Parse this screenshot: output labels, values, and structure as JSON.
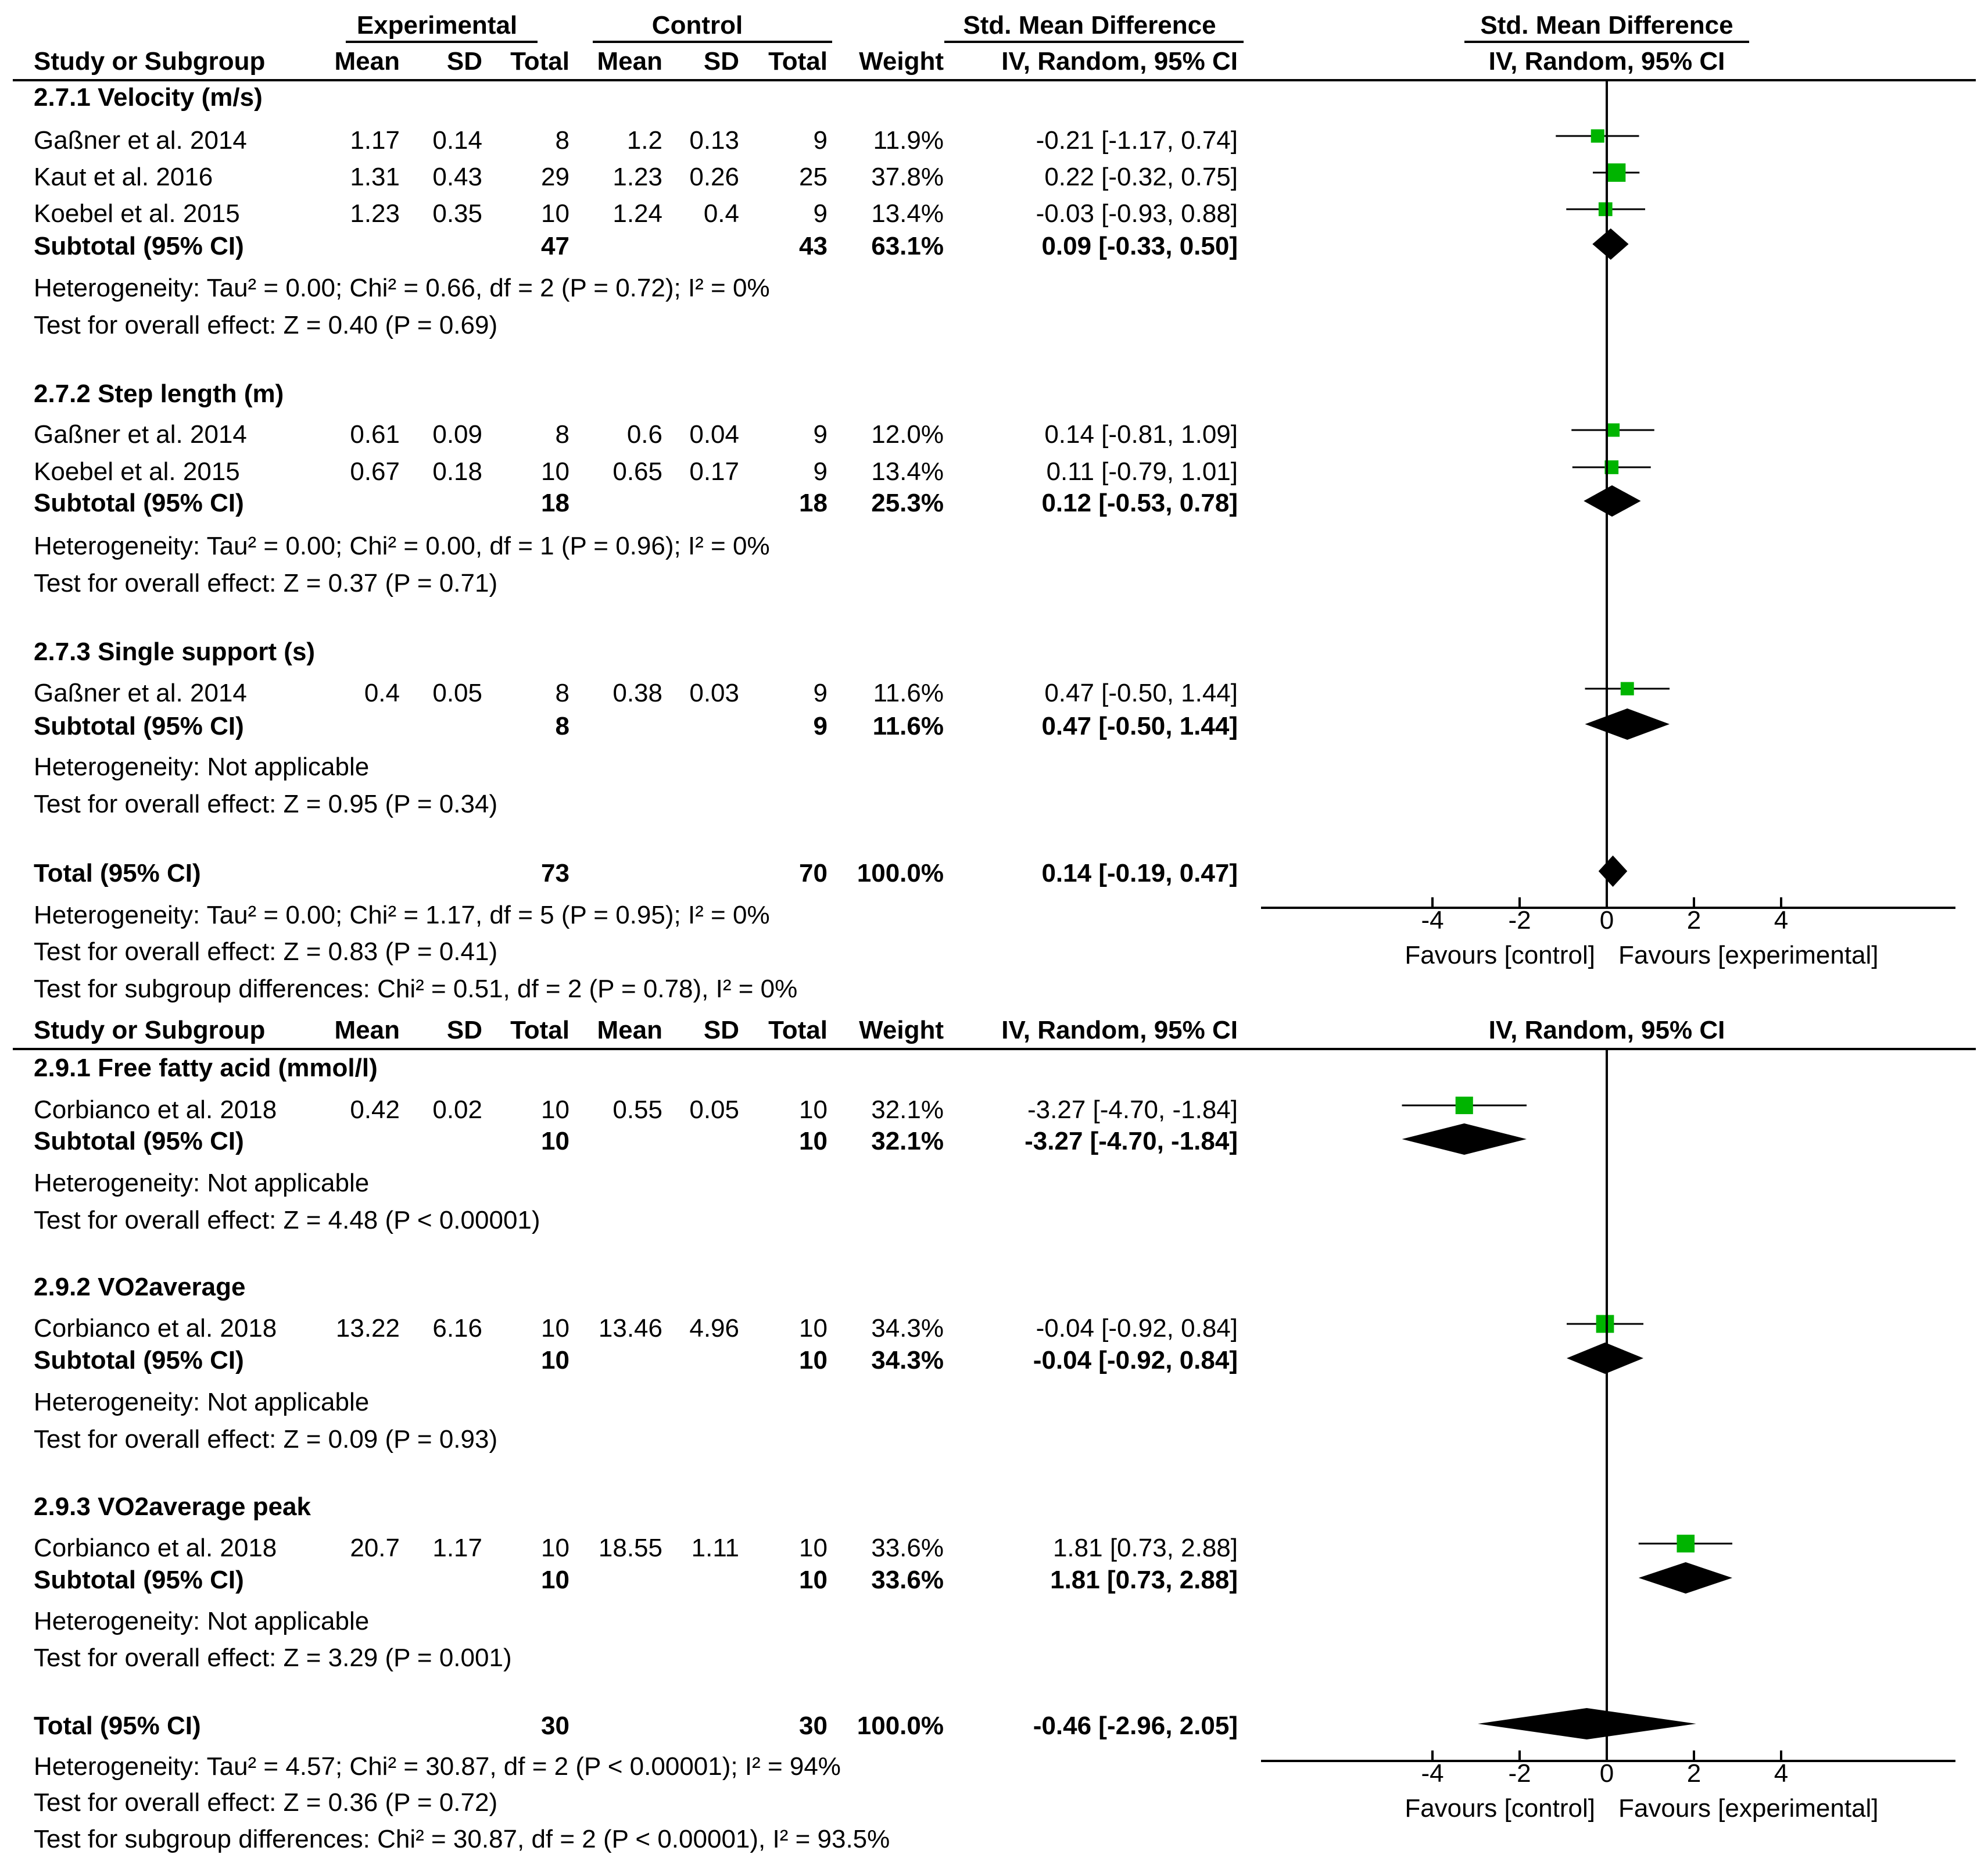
{
  "chart_data": [
    {
      "type": "forest",
      "header": {
        "group_experimental": "Experimental",
        "group_control": "Control",
        "effect_title": "Std. Mean Difference",
        "plot_title": "Std. Mean Difference",
        "cols": [
          "Study or Subgroup",
          "Mean",
          "SD",
          "Total",
          "Mean",
          "SD",
          "Total",
          "Weight",
          "IV, Random, 95% CI"
        ],
        "plot_method": "IV, Random, 95% CI"
      },
      "xlim": [
        -4,
        4
      ],
      "axis_ticks": [
        "-4",
        "-2",
        "0",
        "2",
        "4"
      ],
      "favours_left": "Favours [control]",
      "favours_right": "Favours [experimental]",
      "subgroups": [
        {
          "title": "2.7.1 Velocity (m/s)",
          "studies": [
            {
              "name": "Gaßner et al. 2014",
              "e_mean": "1.17",
              "e_sd": "0.14",
              "e_total": "8",
              "c_mean": "1.2",
              "c_sd": "0.13",
              "c_total": "9",
              "weight": "11.9%",
              "ci_text": "-0.21 [-1.17, 0.74]",
              "est": -0.21,
              "lo": -1.17,
              "hi": 0.74,
              "w": 11.9
            },
            {
              "name": "Kaut et al. 2016",
              "e_mean": "1.31",
              "e_sd": "0.43",
              "e_total": "29",
              "c_mean": "1.23",
              "c_sd": "0.26",
              "c_total": "25",
              "weight": "37.8%",
              "ci_text": "0.22 [-0.32, 0.75]",
              "est": 0.22,
              "lo": -0.32,
              "hi": 0.75,
              "w": 37.8
            },
            {
              "name": "Koebel et al. 2015",
              "e_mean": "1.23",
              "e_sd": "0.35",
              "e_total": "10",
              "c_mean": "1.24",
              "c_sd": "0.4",
              "c_total": "9",
              "weight": "13.4%",
              "ci_text": "-0.03 [-0.93, 0.88]",
              "est": -0.03,
              "lo": -0.93,
              "hi": 0.88,
              "w": 13.4
            }
          ],
          "subtotal": {
            "label": "Subtotal (95% CI)",
            "e_total": "47",
            "c_total": "43",
            "weight": "63.1%",
            "ci_text": "0.09 [-0.33, 0.50]",
            "est": 0.09,
            "lo": -0.33,
            "hi": 0.5
          },
          "heterogeneity": "Heterogeneity: Tau² = 0.00; Chi² = 0.66, df = 2 (P = 0.72); I² = 0%",
          "overall": "Test for overall effect: Z = 0.40 (P = 0.69)"
        },
        {
          "title": "2.7.2 Step length (m)",
          "studies": [
            {
              "name": "Gaßner et al. 2014",
              "e_mean": "0.61",
              "e_sd": "0.09",
              "e_total": "8",
              "c_mean": "0.6",
              "c_sd": "0.04",
              "c_total": "9",
              "weight": "12.0%",
              "ci_text": "0.14 [-0.81, 1.09]",
              "est": 0.14,
              "lo": -0.81,
              "hi": 1.09,
              "w": 12.0
            },
            {
              "name": "Koebel et al. 2015",
              "e_mean": "0.67",
              "e_sd": "0.18",
              "e_total": "10",
              "c_mean": "0.65",
              "c_sd": "0.17",
              "c_total": "9",
              "weight": "13.4%",
              "ci_text": "0.11 [-0.79, 1.01]",
              "est": 0.11,
              "lo": -0.79,
              "hi": 1.01,
              "w": 13.4
            }
          ],
          "subtotal": {
            "label": "Subtotal (95% CI)",
            "e_total": "18",
            "c_total": "18",
            "weight": "25.3%",
            "ci_text": "0.12 [-0.53, 0.78]",
            "est": 0.12,
            "lo": -0.53,
            "hi": 0.78
          },
          "heterogeneity": "Heterogeneity: Tau² = 0.00; Chi² = 0.00, df = 1 (P = 0.96); I² = 0%",
          "overall": "Test for overall effect: Z = 0.37 (P = 0.71)"
        },
        {
          "title": "2.7.3 Single support (s)",
          "studies": [
            {
              "name": "Gaßner et al. 2014",
              "e_mean": "0.4",
              "e_sd": "0.05",
              "e_total": "8",
              "c_mean": "0.38",
              "c_sd": "0.03",
              "c_total": "9",
              "weight": "11.6%",
              "ci_text": "0.47 [-0.50, 1.44]",
              "est": 0.47,
              "lo": -0.5,
              "hi": 1.44,
              "w": 11.6
            }
          ],
          "subtotal": {
            "label": "Subtotal (95% CI)",
            "e_total": "8",
            "c_total": "9",
            "weight": "11.6%",
            "ci_text": "0.47 [-0.50, 1.44]",
            "est": 0.47,
            "lo": -0.5,
            "hi": 1.44
          },
          "heterogeneity": "Heterogeneity: Not applicable",
          "overall": "Test for overall effect: Z = 0.95 (P = 0.34)"
        }
      ],
      "total": {
        "label": "Total (95% CI)",
        "e_total": "73",
        "c_total": "70",
        "weight": "100.0%",
        "ci_text": "0.14 [-0.19, 0.47]",
        "est": 0.14,
        "lo": -0.19,
        "hi": 0.47
      },
      "total_heterogeneity": "Heterogeneity: Tau² = 0.00; Chi² = 1.17, df = 5 (P = 0.95); I² = 0%",
      "total_overall": "Test for overall effect: Z = 0.83 (P = 0.41)",
      "subgroup_diff": "Test for subgroup differences: Chi² = 0.51, df = 2 (P = 0.78), I² = 0%"
    },
    {
      "type": "forest",
      "header": {
        "cols": [
          "Study or Subgroup",
          "Mean",
          "SD",
          "Total",
          "Mean",
          "SD",
          "Total",
          "Weight",
          "IV, Random, 95% CI"
        ],
        "plot_method": "IV, Random, 95% CI"
      },
      "xlim": [
        -4,
        4
      ],
      "axis_ticks": [
        "-4",
        "-2",
        "0",
        "2",
        "4"
      ],
      "favours_left": "Favours [control]",
      "favours_right": "Favours [experimental]",
      "subgroups": [
        {
          "title": "2.9.1 Free fatty acid (mmol/l)",
          "studies": [
            {
              "name": "Corbianco et al. 2018",
              "e_mean": "0.42",
              "e_sd": "0.02",
              "e_total": "10",
              "c_mean": "0.55",
              "c_sd": "0.05",
              "c_total": "10",
              "weight": "32.1%",
              "ci_text": "-3.27 [-4.70, -1.84]",
              "est": -3.27,
              "lo": -4.7,
              "hi": -1.84,
              "w": 32.1
            }
          ],
          "subtotal": {
            "label": "Subtotal (95% CI)",
            "e_total": "10",
            "c_total": "10",
            "weight": "32.1%",
            "ci_text": "-3.27 [-4.70, -1.84]",
            "est": -3.27,
            "lo": -4.7,
            "hi": -1.84
          },
          "heterogeneity": "Heterogeneity: Not applicable",
          "overall": "Test for overall effect: Z = 4.48 (P < 0.00001)"
        },
        {
          "title": "2.9.2 VO2average",
          "studies": [
            {
              "name": "Corbianco et al. 2018",
              "e_mean": "13.22",
              "e_sd": "6.16",
              "e_total": "10",
              "c_mean": "13.46",
              "c_sd": "4.96",
              "c_total": "10",
              "weight": "34.3%",
              "ci_text": "-0.04 [-0.92, 0.84]",
              "est": -0.04,
              "lo": -0.92,
              "hi": 0.84,
              "w": 34.3
            }
          ],
          "subtotal": {
            "label": "Subtotal (95% CI)",
            "e_total": "10",
            "c_total": "10",
            "weight": "34.3%",
            "ci_text": "-0.04 [-0.92, 0.84]",
            "est": -0.04,
            "lo": -0.92,
            "hi": 0.84
          },
          "heterogeneity": "Heterogeneity: Not applicable",
          "overall": "Test for overall effect: Z = 0.09 (P = 0.93)"
        },
        {
          "title": "2.9.3 VO2average peak",
          "studies": [
            {
              "name": "Corbianco et al. 2018",
              "e_mean": "20.7",
              "e_sd": "1.17",
              "e_total": "10",
              "c_mean": "18.55",
              "c_sd": "1.11",
              "c_total": "10",
              "weight": "33.6%",
              "ci_text": "1.81 [0.73, 2.88]",
              "est": 1.81,
              "lo": 0.73,
              "hi": 2.88,
              "w": 33.6
            }
          ],
          "subtotal": {
            "label": "Subtotal (95% CI)",
            "e_total": "10",
            "c_total": "10",
            "weight": "33.6%",
            "ci_text": "1.81 [0.73, 2.88]",
            "est": 1.81,
            "lo": 0.73,
            "hi": 2.88
          },
          "heterogeneity": "Heterogeneity: Not applicable",
          "overall": "Test for overall effect: Z = 3.29 (P = 0.001)"
        }
      ],
      "total": {
        "label": "Total (95% CI)",
        "e_total": "30",
        "c_total": "30",
        "weight": "100.0%",
        "ci_text": "-0.46 [-2.96, 2.05]",
        "est": -0.46,
        "lo": -2.96,
        "hi": 2.05
      },
      "total_heterogeneity": "Heterogeneity: Tau² = 4.57; Chi² = 30.87, df = 2 (P < 0.00001); I² = 94%",
      "total_overall": "Test for overall effect: Z = 0.36 (P = 0.72)",
      "subgroup_diff": "Test for subgroup differences: Chi² = 30.87, df = 2 (P < 0.00001), I² = 93.5%"
    }
  ],
  "colors": {
    "study_marker": "#00b400",
    "diamond": "#000000",
    "line": "#000000"
  }
}
